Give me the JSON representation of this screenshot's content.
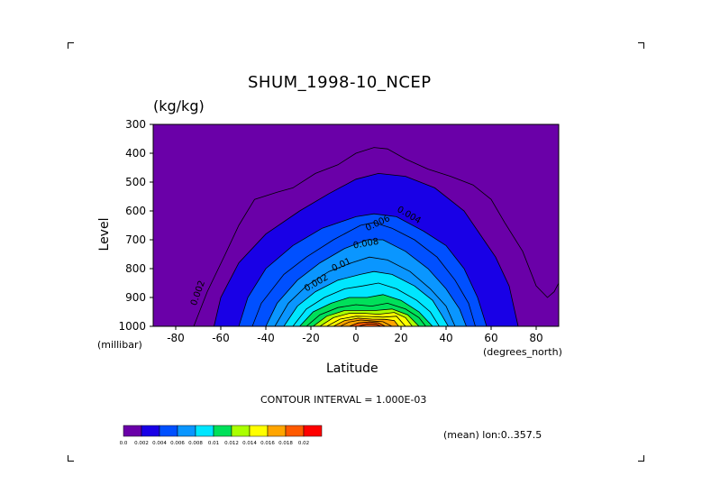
{
  "chart_data": {
    "type": "contour",
    "title": "SHUM_1998-10_NCEP",
    "units": "(kg/kg)",
    "xlabel": "Latitude",
    "ylabel": "Level",
    "y_unit_label": "(millibar)",
    "x_unit_label": "(degrees_north)",
    "x_ticks": [
      "-80",
      "-60",
      "-40",
      "-20",
      "0",
      "20",
      "40",
      "60",
      "80"
    ],
    "y_ticks": [
      "300",
      "400",
      "500",
      "600",
      "700",
      "800",
      "900",
      "1000"
    ],
    "xlim": [
      -90,
      90
    ],
    "ylim": [
      1000,
      300
    ],
    "contour_interval_text": "CONTOUR INTERVAL = 1.000E-03",
    "mean_text": "(mean) lon:0..357.5",
    "contour_labels": [
      "0.002",
      "0.004",
      "0.006",
      "0.008",
      "0.01",
      "0.002"
    ],
    "colorbar": {
      "labels": [
        "0.0",
        "0.002",
        "0.004",
        "0.006",
        "0.008",
        "0.01",
        "0.012",
        "0.014",
        "0.016",
        "0.018",
        "0.02"
      ],
      "colors": [
        "#6a00a8",
        "#1900e6",
        "#0050ff",
        "#0a96ff",
        "#00e6ff",
        "#00e05a",
        "#aaff00",
        "#ffff00",
        "#ffa500",
        "#ff5a00",
        "#ff0000"
      ]
    },
    "levels": [
      {
        "value": 0.002,
        "color": "#1900e6",
        "pts": [
          [
            -63,
            1000
          ],
          [
            -60,
            900
          ],
          [
            -52,
            780
          ],
          [
            -40,
            680
          ],
          [
            -25,
            600
          ],
          [
            -12,
            540
          ],
          [
            0,
            490
          ],
          [
            10,
            470
          ],
          [
            22,
            480
          ],
          [
            35,
            520
          ],
          [
            48,
            600
          ],
          [
            55,
            680
          ],
          [
            62,
            760
          ],
          [
            68,
            860
          ],
          [
            72,
            1000
          ]
        ]
      },
      {
        "value": 0.003,
        "color": "#0050ff",
        "pts": [
          [
            -52,
            1000
          ],
          [
            -48,
            900
          ],
          [
            -40,
            800
          ],
          [
            -28,
            720
          ],
          [
            -15,
            660
          ],
          [
            0,
            620
          ],
          [
            8,
            610
          ],
          [
            18,
            620
          ],
          [
            30,
            670
          ],
          [
            40,
            720
          ],
          [
            48,
            800
          ],
          [
            54,
            900
          ],
          [
            58,
            1000
          ]
        ]
      },
      {
        "value": 0.004,
        "color": "#0050ff",
        "pts": [
          [
            -46,
            1000
          ],
          [
            -42,
            920
          ],
          [
            -32,
            820
          ],
          [
            -22,
            760
          ],
          [
            -10,
            700
          ],
          [
            2,
            650
          ],
          [
            8,
            640
          ],
          [
            16,
            660
          ],
          [
            26,
            700
          ],
          [
            36,
            760
          ],
          [
            44,
            840
          ],
          [
            50,
            920
          ],
          [
            53,
            1000
          ]
        ]
      },
      {
        "value": 0.005,
        "color": "#0a96ff",
        "pts": [
          [
            -40,
            1000
          ],
          [
            -35,
            920
          ],
          [
            -26,
            840
          ],
          [
            -16,
            780
          ],
          [
            -5,
            730
          ],
          [
            5,
            700
          ],
          [
            12,
            700
          ],
          [
            22,
            740
          ],
          [
            32,
            800
          ],
          [
            40,
            870
          ],
          [
            46,
            940
          ],
          [
            49,
            1000
          ]
        ]
      },
      {
        "value": 0.006,
        "color": "#0a96ff",
        "pts": [
          [
            -36,
            1000
          ],
          [
            -30,
            920
          ],
          [
            -22,
            860
          ],
          [
            -12,
            810
          ],
          [
            -2,
            780
          ],
          [
            6,
            760
          ],
          [
            14,
            770
          ],
          [
            24,
            810
          ],
          [
            33,
            870
          ],
          [
            40,
            930
          ],
          [
            44,
            1000
          ]
        ]
      },
      {
        "value": 0.007,
        "color": "#00e6ff",
        "pts": [
          [
            -32,
            1000
          ],
          [
            -26,
            930
          ],
          [
            -18,
            880
          ],
          [
            -8,
            840
          ],
          [
            2,
            820
          ],
          [
            8,
            810
          ],
          [
            16,
            820
          ],
          [
            26,
            860
          ],
          [
            34,
            910
          ],
          [
            38,
            960
          ],
          [
            41,
            1000
          ]
        ]
      },
      {
        "value": 0.008,
        "color": "#00e6ff",
        "pts": [
          [
            -28,
            1000
          ],
          [
            -22,
            940
          ],
          [
            -14,
            900
          ],
          [
            -5,
            870
          ],
          [
            3,
            860
          ],
          [
            10,
            850
          ],
          [
            18,
            870
          ],
          [
            27,
            910
          ],
          [
            33,
            950
          ],
          [
            37,
            1000
          ]
        ]
      },
      {
        "value": 0.009,
        "color": "#00e05a",
        "pts": [
          [
            -25,
            1000
          ],
          [
            -19,
            950
          ],
          [
            -11,
            920
          ],
          [
            -3,
            900
          ],
          [
            5,
            900
          ],
          [
            12,
            890
          ],
          [
            20,
            910
          ],
          [
            28,
            950
          ],
          [
            34,
            1000
          ]
        ]
      },
      {
        "value": 0.01,
        "color": "#00e05a",
        "pts": [
          [
            -22,
            1000
          ],
          [
            -16,
            960
          ],
          [
            -8,
            935
          ],
          [
            0,
            925
          ],
          [
            7,
            930
          ],
          [
            14,
            920
          ],
          [
            22,
            940
          ],
          [
            28,
            970
          ],
          [
            31,
            1000
          ]
        ]
      },
      {
        "value": 0.011,
        "color": "#aaff00",
        "pts": [
          [
            -19,
            1000
          ],
          [
            -13,
            965
          ],
          [
            -5,
            945
          ],
          [
            2,
            945
          ],
          [
            9,
            945
          ],
          [
            16,
            940
          ],
          [
            23,
            960
          ],
          [
            28,
            1000
          ]
        ]
      },
      {
        "value": 0.012,
        "color": "#ffff00",
        "pts": [
          [
            -16,
            1000
          ],
          [
            -10,
            970
          ],
          [
            -3,
            955
          ],
          [
            4,
            955
          ],
          [
            10,
            958
          ],
          [
            17,
            952
          ],
          [
            22,
            970
          ],
          [
            25,
            1000
          ]
        ]
      },
      {
        "value": 0.013,
        "color": "#ffff00",
        "pts": [
          [
            -13,
            1000
          ],
          [
            -7,
            975
          ],
          [
            0,
            965
          ],
          [
            6,
            966
          ],
          [
            12,
            968
          ],
          [
            18,
            965
          ],
          [
            22,
            1000
          ]
        ]
      },
      {
        "value": 0.014,
        "color": "#ffa500",
        "pts": [
          [
            -10,
            1000
          ],
          [
            -5,
            980
          ],
          [
            1,
            972
          ],
          [
            7,
            975
          ],
          [
            13,
            976
          ],
          [
            17,
            980
          ],
          [
            19,
            1000
          ]
        ]
      },
      {
        "value": 0.015,
        "color": "#ffa500",
        "pts": [
          [
            -7,
            1000
          ],
          [
            -3,
            985
          ],
          [
            2,
            978
          ],
          [
            8,
            982
          ],
          [
            12,
            984
          ],
          [
            16,
            1000
          ]
        ]
      },
      {
        "value": 0.016,
        "color": "#ff5a00",
        "pts": [
          [
            -3,
            1000
          ],
          [
            1,
            988
          ],
          [
            6,
            985
          ],
          [
            10,
            988
          ],
          [
            13,
            1000
          ]
        ]
      },
      {
        "value": 0.017,
        "color": "#ff5a00",
        "pts": [
          [
            1,
            1000
          ],
          [
            5,
            992
          ],
          [
            9,
            993
          ],
          [
            11,
            1000
          ]
        ]
      }
    ],
    "outer_contour": {
      "value": 0.001,
      "pts": [
        [
          -72,
          1000
        ],
        [
          -66,
          880
        ],
        [
          -58,
          750
        ],
        [
          -52,
          650
        ],
        [
          -45,
          560
        ],
        [
          -35,
          535
        ],
        [
          -28,
          520
        ],
        [
          -18,
          470
        ],
        [
          -8,
          440
        ],
        [
          0,
          400
        ],
        [
          8,
          380
        ],
        [
          14,
          385
        ],
        [
          22,
          420
        ],
        [
          32,
          455
        ],
        [
          42,
          480
        ],
        [
          52,
          510
        ],
        [
          60,
          560
        ],
        [
          66,
          640
        ],
        [
          74,
          740
        ],
        [
          80,
          860
        ],
        [
          85,
          900
        ],
        [
          88,
          880
        ],
        [
          90,
          850
        ]
      ]
    }
  }
}
